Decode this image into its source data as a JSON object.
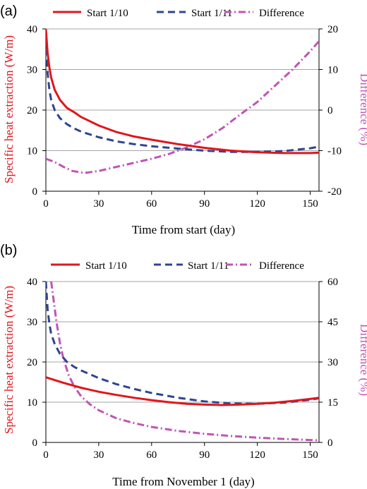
{
  "colors": {
    "start_1_10": "#e0161b",
    "start_1_11": "#2e4593",
    "difference": "#c154b5",
    "grid": "#a6a6a6",
    "axis": "#000000"
  },
  "chart_data": [
    {
      "panel_label": "(a)",
      "type": "line",
      "xlabel": "Time from start (day)",
      "ylabel": "Specific heat extraction (W/m)",
      "y2label": "Difference (%)",
      "xlim": [
        0,
        155
      ],
      "ylim": [
        0,
        40
      ],
      "y2lim": [
        -20,
        20
      ],
      "xticks": [
        0,
        30,
        60,
        90,
        120,
        150
      ],
      "yticks": [
        0,
        10,
        20,
        30,
        40
      ],
      "y2ticks": [
        -20,
        -10,
        0,
        10,
        20
      ],
      "grid": "horizontal",
      "legend": "top",
      "series": [
        {
          "name": "Start 1/10",
          "axis": "left",
          "style": "solid",
          "x": [
            0,
            1,
            2,
            3,
            5,
            8,
            12,
            16,
            20,
            30,
            40,
            50,
            60,
            75,
            90,
            105,
            120,
            135,
            150,
            155
          ],
          "y": [
            40,
            34,
            30.5,
            28,
            25,
            22.5,
            20.5,
            19.5,
            18.3,
            16.2,
            14.6,
            13.5,
            12.7,
            11.6,
            10.7,
            10.0,
            9.6,
            9.4,
            9.4,
            9.5
          ]
        },
        {
          "name": "Start 1/11",
          "axis": "left",
          "style": "dashed",
          "x": [
            0,
            1,
            2,
            3,
            5,
            8,
            12,
            16,
            20,
            30,
            40,
            50,
            60,
            75,
            90,
            105,
            120,
            135,
            150,
            155
          ],
          "y": [
            38,
            29,
            25,
            22.5,
            20,
            18,
            16.5,
            15.5,
            14.7,
            13.3,
            12.3,
            11.6,
            11.1,
            10.5,
            10.0,
            9.7,
            9.7,
            9.9,
            10.6,
            11.0
          ]
        },
        {
          "name": "Difference",
          "axis": "right",
          "style": "dashdot",
          "x": [
            0,
            5,
            10,
            15,
            22,
            30,
            40,
            50,
            60,
            70,
            80,
            90,
            100,
            110,
            120,
            130,
            140,
            150,
            155
          ],
          "y": [
            -12,
            -12.8,
            -14,
            -15,
            -15.5,
            -15,
            -14,
            -13,
            -12,
            -10.8,
            -9.2,
            -7.2,
            -4.5,
            -1.2,
            2,
            6,
            10,
            14.5,
            17
          ]
        }
      ]
    },
    {
      "panel_label": "(b)",
      "type": "line",
      "xlabel": "Time from November 1 (day)",
      "ylabel": "Specific heat extraction (W/m)",
      "y2label": "Difference (%)",
      "xlim": [
        0,
        155
      ],
      "ylim": [
        0,
        40
      ],
      "y2lim": [
        0,
        60
      ],
      "xticks": [
        0,
        30,
        60,
        90,
        120,
        150
      ],
      "yticks": [
        0,
        10,
        20,
        30,
        40
      ],
      "y2ticks": [
        0,
        15,
        30,
        45,
        60
      ],
      "grid": "horizontal",
      "legend": "top",
      "series": [
        {
          "name": "Start 1/10",
          "axis": "left",
          "style": "solid",
          "x": [
            0,
            10,
            20,
            30,
            40,
            50,
            60,
            70,
            80,
            90,
            100,
            110,
            120,
            130,
            140,
            150,
            155
          ],
          "y": [
            16.2,
            14.8,
            13.6,
            12.6,
            11.8,
            11.1,
            10.5,
            10.0,
            9.6,
            9.4,
            9.3,
            9.4,
            9.6,
            9.9,
            10.3,
            10.8,
            11.1
          ]
        },
        {
          "name": "Start 1/11",
          "axis": "left",
          "style": "dashed",
          "x": [
            0,
            1,
            2,
            3,
            5,
            8,
            12,
            16,
            20,
            30,
            40,
            50,
            60,
            75,
            90,
            105,
            120,
            135,
            150,
            155
          ],
          "y": [
            40,
            33,
            29.5,
            27,
            24.5,
            22,
            20,
            18.8,
            17.9,
            16.0,
            14.5,
            13.3,
            12.3,
            11.1,
            10.2,
            9.7,
            9.6,
            9.9,
            10.6,
            11.0
          ]
        },
        {
          "name": "Difference",
          "axis": "right",
          "style": "dashdot",
          "x": [
            3,
            4,
            6,
            8,
            10,
            13,
            16,
            20,
            25,
            30,
            40,
            50,
            60,
            75,
            90,
            105,
            120,
            135,
            150,
            155
          ],
          "y": [
            60,
            55,
            45,
            37,
            31,
            25,
            21,
            17.2,
            14.2,
            12,
            9,
            7.2,
            5.8,
            4.3,
            3.2,
            2.4,
            1.8,
            1.3,
            0.9,
            0.8
          ]
        }
      ]
    }
  ]
}
